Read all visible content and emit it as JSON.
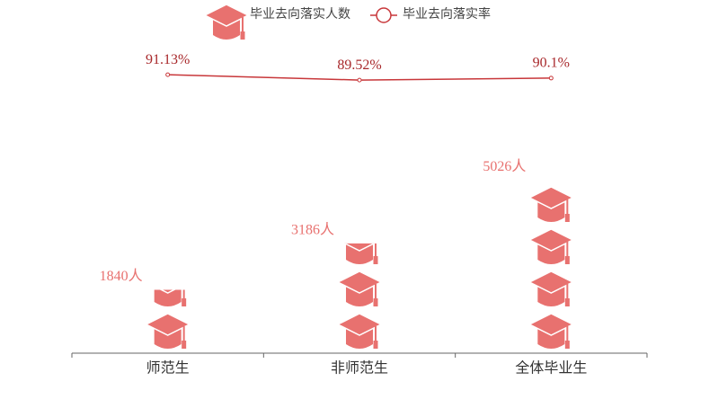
{
  "chart_data": {
    "type": "pictorial-bar-line",
    "categories": [
      "师范生",
      "非师范生",
      "全体毕业生"
    ],
    "series": [
      {
        "name": "毕业去向落实人数",
        "type": "pictorial-bar",
        "color": "#e8716f",
        "values": [
          1840,
          3186,
          5026
        ],
        "value_labels": [
          "1840人",
          "3186人",
          "5026人"
        ]
      },
      {
        "name": "毕业去向落实率",
        "type": "line",
        "axis": "y2",
        "color": "#c8373a",
        "values": [
          91.13,
          89.52,
          90.1
        ],
        "value_labels": [
          "91.13%",
          "89.52%",
          "90.1%"
        ]
      }
    ],
    "ylim": [
      0,
      6000
    ],
    "y2lim": [
      0,
      100
    ]
  }
}
